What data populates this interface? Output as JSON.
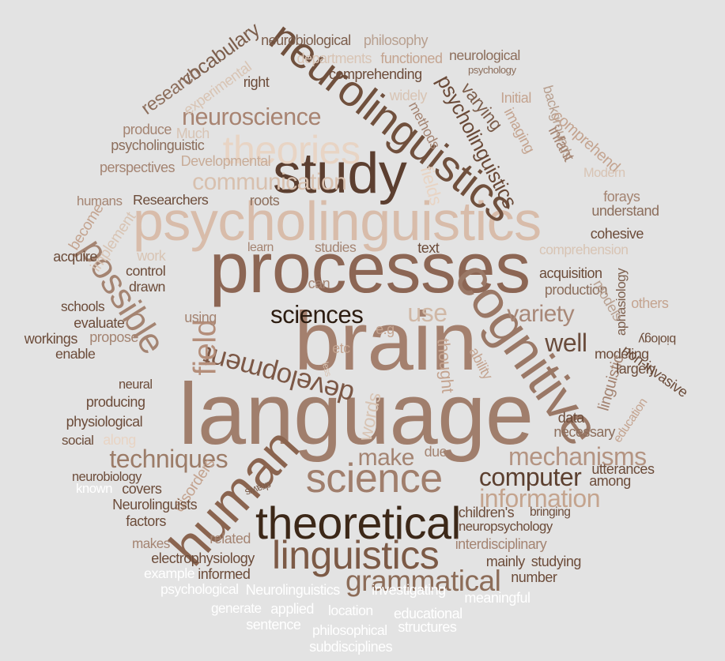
{
  "words": [
    {
      "text": "language",
      "color": "#a07e6c"
    },
    {
      "text": "brain",
      "color": "#a4806e"
    },
    {
      "text": "processes",
      "color": "#8c6654"
    },
    {
      "text": "psycholinguistics",
      "color": "#d8bcaa"
    },
    {
      "text": "neurolinguistics",
      "color": "#70503d"
    },
    {
      "text": "study",
      "color": "#5c3f30"
    },
    {
      "text": "theoretical",
      "color": "#3c2818"
    },
    {
      "text": "science",
      "color": "#a07e6c"
    },
    {
      "text": "linguistics",
      "color": "#7c5a46"
    },
    {
      "text": "cognitive",
      "color": "#9a7866"
    },
    {
      "text": "human",
      "color": "#8a644f"
    },
    {
      "text": "development",
      "color": "#7c5846"
    },
    {
      "text": "theories",
      "color": "#e8d4c4"
    },
    {
      "text": "psycholinguistics",
      "color": "#6a4a38"
    },
    {
      "text": "neuroscience",
      "color": "#a88472"
    },
    {
      "text": "communication",
      "color": "#d8c0ae"
    },
    {
      "text": "field",
      "color": "#b48e7a"
    },
    {
      "text": "possible",
      "color": "#a48472"
    },
    {
      "text": "techniques",
      "color": "#9c7c68"
    },
    {
      "text": "grammatical",
      "color": "#8c6c58"
    },
    {
      "text": "mechanisms",
      "color": "#b49482"
    },
    {
      "text": "information",
      "color": "#c4a48e"
    },
    {
      "text": "computer",
      "color": "#5c4030"
    },
    {
      "text": "variety",
      "color": "#a88878"
    },
    {
      "text": "sciences",
      "color": "#2c1c10"
    },
    {
      "text": "use",
      "color": "#d0b8a6"
    },
    {
      "text": "well",
      "color": "#6a4c3c"
    },
    {
      "text": "make",
      "color": "#a48472"
    },
    {
      "text": "neurobiological",
      "color": "#7c5e4c"
    },
    {
      "text": "philosophy",
      "color": "#b8a090"
    },
    {
      "text": "vocabulary",
      "color": "#7c5e4c"
    },
    {
      "text": "departments",
      "color": "#d8c4b4"
    },
    {
      "text": "functioned",
      "color": "#c4a490"
    },
    {
      "text": "neurological",
      "color": "#8c6e5c"
    },
    {
      "text": "psychology",
      "color": "#8c6e5c"
    },
    {
      "text": "research",
      "color": "#8c6e5c"
    },
    {
      "text": "experimental",
      "color": "#d8c4b4"
    },
    {
      "text": "comprehending",
      "color": "#6c4c3a"
    },
    {
      "text": "right",
      "color": "#6c4c3a"
    },
    {
      "text": "widely",
      "color": "#d8c4b4"
    },
    {
      "text": "Initial",
      "color": "#c4a490"
    },
    {
      "text": "varying",
      "color": "#7c5e4c"
    },
    {
      "text": "backgrounds",
      "color": "#b8a090"
    },
    {
      "text": "imaging",
      "color": "#c4a490"
    },
    {
      "text": "comprehend",
      "color": "#c4a490"
    },
    {
      "text": "produce",
      "color": "#a48472"
    },
    {
      "text": "methods",
      "color": "#a48472"
    },
    {
      "text": "Much",
      "color": "#d8c4b4"
    },
    {
      "text": "infant",
      "color": "#a48472"
    },
    {
      "text": "psycholinguistic",
      "color": "#8c6e5c"
    },
    {
      "text": "Developmental",
      "color": "#c8ac98"
    },
    {
      "text": "perspectives",
      "color": "#a48472"
    },
    {
      "text": "Modern",
      "color": "#d8c4b4"
    },
    {
      "text": "fields",
      "color": "#e8d4c4"
    },
    {
      "text": "humans",
      "color": "#a48472"
    },
    {
      "text": "Researchers",
      "color": "#6c4c3a"
    },
    {
      "text": "roots",
      "color": "#8c6e5c"
    },
    {
      "text": "forays",
      "color": "#a48472"
    },
    {
      "text": "understand",
      "color": "#8c6e5c"
    },
    {
      "text": "become",
      "color": "#c4a490"
    },
    {
      "text": "implement",
      "color": "#d8c4b4"
    },
    {
      "text": "learn",
      "color": "#a48472"
    },
    {
      "text": "studies",
      "color": "#a48472"
    },
    {
      "text": "text",
      "color": "#6c4c3a"
    },
    {
      "text": "cohesive",
      "color": "#6c4c3a"
    },
    {
      "text": "acquire",
      "color": "#6c4c3a"
    },
    {
      "text": "work",
      "color": "#d8c4b4"
    },
    {
      "text": "comprehension",
      "color": "#d8c4b4"
    },
    {
      "text": "control",
      "color": "#6c4c3a"
    },
    {
      "text": "acquisition",
      "color": "#6c4c3a"
    },
    {
      "text": "drawn",
      "color": "#6c4c3a"
    },
    {
      "text": "can",
      "color": "#a48472"
    },
    {
      "text": "production",
      "color": "#8c6e5c"
    },
    {
      "text": "aphasiology",
      "color": "#7c5e4c"
    },
    {
      "text": "models",
      "color": "#b8a090"
    },
    {
      "text": "others",
      "color": "#c4a490"
    },
    {
      "text": "schools",
      "color": "#6c4c3a"
    },
    {
      "text": "using",
      "color": "#a48472"
    },
    {
      "text": "e.g",
      "color": "#c4a490"
    },
    {
      "text": "evaluate",
      "color": "#6c4c3a"
    },
    {
      "text": "biology",
      "color": "#6c4c3a"
    },
    {
      "text": "workings",
      "color": "#6c4c3a"
    },
    {
      "text": "propose",
      "color": "#a48472"
    },
    {
      "text": "ability",
      "color": "#c4a490"
    },
    {
      "text": "etc",
      "color": "#c4a490"
    },
    {
      "text": "thought",
      "color": "#c4a490"
    },
    {
      "text": "modeling",
      "color": "#6c4c3a"
    },
    {
      "text": "enable",
      "color": "#6c4c3a"
    },
    {
      "text": "less",
      "color": "#d8c4b4"
    },
    {
      "text": "non-invasive",
      "color": "#6c4c3a"
    },
    {
      "text": "linguistic",
      "color": "#a48472"
    },
    {
      "text": "largely",
      "color": "#6c4c3a"
    },
    {
      "text": "neural",
      "color": "#6c4c3a"
    },
    {
      "text": "producing",
      "color": "#6c4c3a"
    },
    {
      "text": "education",
      "color": "#c4a490"
    },
    {
      "text": "physiological",
      "color": "#6c4c3a"
    },
    {
      "text": "words",
      "color": "#d8c4b4"
    },
    {
      "text": "data",
      "color": "#6c4c3a"
    },
    {
      "text": "social",
      "color": "#6c4c3a"
    },
    {
      "text": "along",
      "color": "#e8d4c4"
    },
    {
      "text": "necessary",
      "color": "#8c6e5c"
    },
    {
      "text": "due",
      "color": "#a48472"
    },
    {
      "text": "neurobiology",
      "color": "#6c4c3a"
    },
    {
      "text": "utterances",
      "color": "#6c4c3a"
    },
    {
      "text": "disorders",
      "color": "#c4a490"
    },
    {
      "text": "among",
      "color": "#6c4c3a"
    },
    {
      "text": "known",
      "color": "#ffffff"
    },
    {
      "text": "covers",
      "color": "#6c4c3a"
    },
    {
      "text": "draws",
      "color": "#7c5e4c"
    },
    {
      "text": "Neurolinguists",
      "color": "#6c4c3a"
    },
    {
      "text": "children's",
      "color": "#6c4c3a"
    },
    {
      "text": "bringing",
      "color": "#6c4c3a"
    },
    {
      "text": "factors",
      "color": "#6c4c3a"
    },
    {
      "text": "neuropsychology",
      "color": "#6c4c3a"
    },
    {
      "text": "related",
      "color": "#a48472"
    },
    {
      "text": "makes",
      "color": "#a48472"
    },
    {
      "text": "interdisciplinary",
      "color": "#a48472"
    },
    {
      "text": "electrophysiology",
      "color": "#6c4c3a"
    },
    {
      "text": "mainly",
      "color": "#6c4c3a"
    },
    {
      "text": "studying",
      "color": "#6c4c3a"
    },
    {
      "text": "example",
      "color": "#ffffff"
    },
    {
      "text": "informed",
      "color": "#6c4c3a"
    },
    {
      "text": "number",
      "color": "#6c4c3a"
    },
    {
      "text": "psychological",
      "color": "#ffffff"
    },
    {
      "text": "Neurolinguistics",
      "color": "#ffffff"
    },
    {
      "text": "investigating",
      "color": "#ffffff"
    },
    {
      "text": "meaningful",
      "color": "#ffffff"
    },
    {
      "text": "generate",
      "color": "#ffffff"
    },
    {
      "text": "applied",
      "color": "#ffffff"
    },
    {
      "text": "location",
      "color": "#ffffff"
    },
    {
      "text": "educational",
      "color": "#ffffff"
    },
    {
      "text": "sentence",
      "color": "#ffffff"
    },
    {
      "text": "philosophical",
      "color": "#ffffff"
    },
    {
      "text": "structures",
      "color": "#ffffff"
    },
    {
      "text": "subdisciplines",
      "color": "#ffffff"
    }
  ]
}
